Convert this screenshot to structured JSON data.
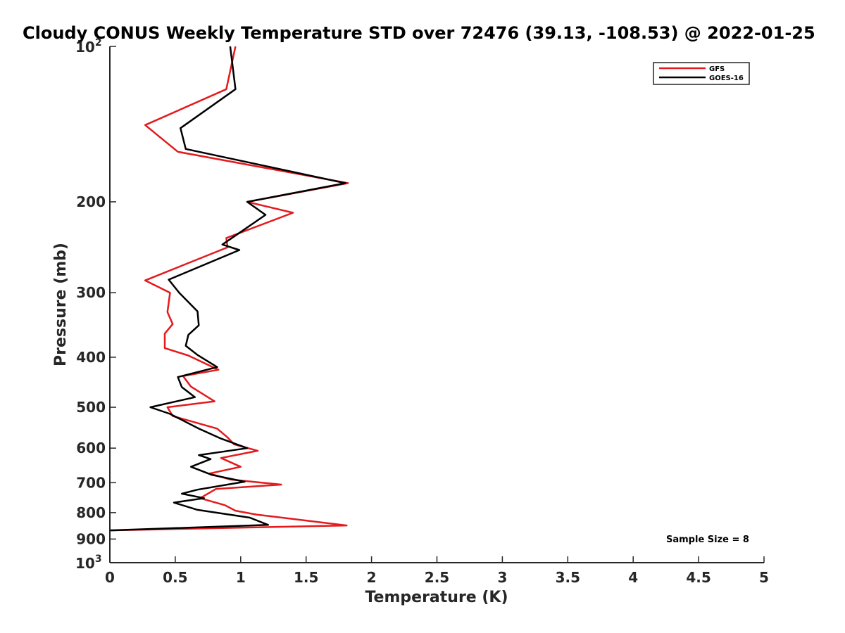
{
  "chart_data": {
    "type": "line",
    "title": "Cloudy CONUS Weekly Temperature STD over 72476 (39.13, -108.53) @ 2022-01-25",
    "xlabel": "Temperature (K)",
    "ylabel": "Pressure (mb)",
    "xlim": [
      0,
      5
    ],
    "ylim": [
      100,
      1000
    ],
    "y_scale": "log",
    "y_reversed": true,
    "grid": false,
    "legend_position": "top-right",
    "x_ticks": [
      "0",
      "0.5",
      "1",
      "1.5",
      "2",
      "2.5",
      "3",
      "3.5",
      "4",
      "4.5",
      "5"
    ],
    "y_ticks": [
      {
        "value": 100,
        "base": "10",
        "exp": "2"
      },
      {
        "value": 200,
        "label": "200"
      },
      {
        "value": 300,
        "label": "300"
      },
      {
        "value": 400,
        "label": "400"
      },
      {
        "value": 500,
        "label": "500"
      },
      {
        "value": 600,
        "label": "600"
      },
      {
        "value": 700,
        "label": "700"
      },
      {
        "value": 800,
        "label": "800"
      },
      {
        "value": 900,
        "label": "900"
      },
      {
        "value": 1000,
        "base": "10",
        "exp": "3"
      }
    ],
    "annotation": "Sample Size = 8",
    "series": [
      {
        "name": "GFS",
        "color": "#e41a1c",
        "x": [
          0.96,
          0.89,
          0.27,
          0.52,
          1.82,
          1.05,
          1.4,
          0.89,
          0.9,
          0.27,
          0.46,
          0.44,
          0.48,
          0.42,
          0.42,
          0.6,
          0.83,
          0.56,
          0.62,
          0.8,
          0.44,
          0.48,
          0.82,
          0.9,
          0.95,
          1.13,
          0.85,
          1.0,
          0.76,
          0.92,
          1.31,
          0.81,
          0.69,
          0.88,
          0.96,
          1.12,
          1.81,
          0.0
        ],
        "y": [
          100,
          121,
          142,
          160,
          184,
          200,
          210,
          235,
          245,
          284,
          300,
          327,
          345,
          360,
          384,
          397,
          423,
          435,
          456,
          487,
          500,
          520,
          550,
          572,
          590,
          607,
          627,
          652,
          672,
          690,
          706,
          720,
          750,
          774,
          793,
          807,
          847,
          866
        ]
      },
      {
        "name": "GOES-16",
        "color": "#000000",
        "x": [
          0.92,
          0.96,
          0.54,
          0.58,
          1.8,
          1.05,
          1.19,
          0.86,
          0.99,
          0.45,
          0.53,
          0.67,
          0.68,
          0.6,
          0.58,
          0.67,
          0.82,
          0.52,
          0.55,
          0.65,
          0.31,
          0.46,
          0.68,
          0.85,
          1.05,
          0.68,
          0.77,
          0.62,
          0.78,
          1.03,
          0.67,
          0.55,
          0.72,
          0.49,
          0.67,
          1.07,
          1.21,
          0.0
        ],
        "y": [
          100,
          121,
          144,
          158,
          184,
          200,
          212,
          242,
          248,
          283,
          300,
          326,
          347,
          362,
          380,
          396,
          418,
          437,
          457,
          478,
          500,
          515,
          550,
          575,
          600,
          619,
          630,
          652,
          676,
          697,
          722,
          735,
          750,
          765,
          790,
          818,
          845,
          866
        ]
      }
    ]
  }
}
